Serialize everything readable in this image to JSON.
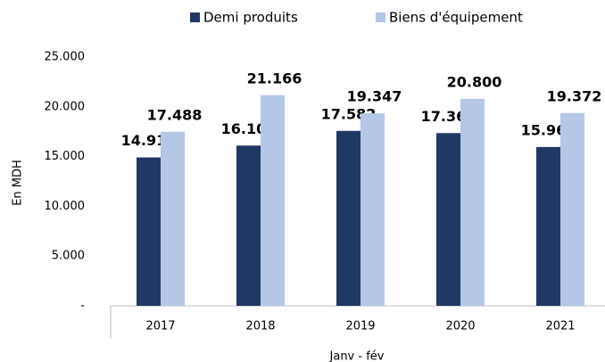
{
  "chart_data": {
    "type": "bar",
    "categories": [
      "2017",
      "2018",
      "2019",
      "2020",
      "2021"
    ],
    "series": [
      {
        "name": "Demi produits",
        "color": "#203864",
        "values": [
          14914,
          16104,
          17582,
          17361,
          15962
        ],
        "value_labels": [
          "14.914",
          "16.104",
          "17.582",
          "17.361",
          "15.962"
        ]
      },
      {
        "name": "Biens d'équipement",
        "color": "#b4c7e7",
        "values": [
          17488,
          21166,
          19347,
          20800,
          19372
        ],
        "value_labels": [
          "17.488",
          "21.166",
          "19.347",
          "20.800",
          "19.372"
        ]
      }
    ],
    "ylabel": "En MDH",
    "xlabel": "Janv - fév",
    "ylim": [
      0,
      25000
    ],
    "yticks": [
      {
        "value": 0,
        "label": "-"
      },
      {
        "value": 5000,
        "label": "5.000"
      },
      {
        "value": 10000,
        "label": "10.000"
      },
      {
        "value": 15000,
        "label": "15.000"
      },
      {
        "value": 20000,
        "label": "20.000"
      },
      {
        "value": 25000,
        "label": "25.000"
      }
    ],
    "grid": false,
    "legend": "top"
  }
}
